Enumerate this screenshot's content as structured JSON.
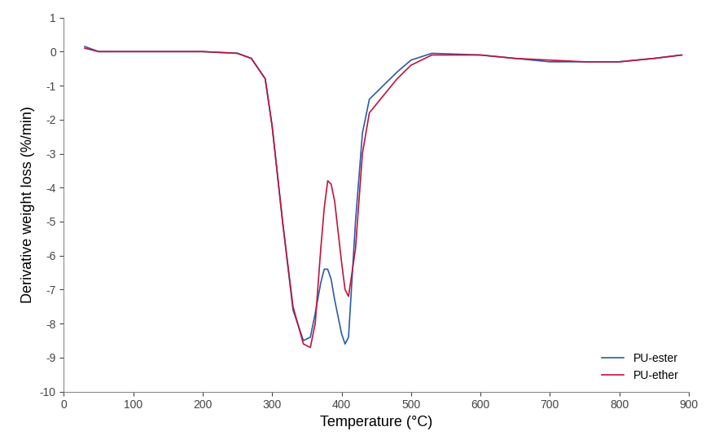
{
  "chart_data": {
    "type": "line",
    "x_label": "Temperature (°C)",
    "y_label": "Derivative weight loss (%/min)",
    "x": [
      30,
      50,
      100,
      150,
      200,
      250,
      270,
      290,
      300,
      315,
      330,
      345,
      355,
      362,
      370,
      375,
      380,
      385,
      390,
      395,
      400,
      405,
      410,
      420,
      430,
      440,
      460,
      480,
      500,
      530,
      600,
      650,
      700,
      750,
      800,
      850,
      890
    ],
    "series": [
      {
        "name": "PU-ester",
        "color": "#2a5caa",
        "values": [
          0.15,
          0.0,
          0.0,
          0.0,
          0.0,
          -0.05,
          -0.2,
          -0.8,
          -2.2,
          -5.0,
          -7.6,
          -8.5,
          -8.4,
          -7.7,
          -6.8,
          -6.4,
          -6.4,
          -6.7,
          -7.3,
          -7.8,
          -8.3,
          -8.6,
          -8.4,
          -5.0,
          -2.4,
          -1.4,
          -1.0,
          -0.6,
          -0.25,
          -0.05,
          -0.1,
          -0.2,
          -0.3,
          -0.3,
          -0.3,
          -0.2,
          -0.1
        ]
      },
      {
        "name": "PU-ether",
        "color": "#c0143c",
        "values": [
          0.1,
          0.0,
          0.0,
          0.0,
          0.0,
          -0.05,
          -0.2,
          -0.8,
          -2.2,
          -5.0,
          -7.5,
          -8.6,
          -8.7,
          -8.0,
          -5.8,
          -4.6,
          -3.8,
          -3.9,
          -4.4,
          -5.3,
          -6.2,
          -7.0,
          -7.2,
          -5.8,
          -3.0,
          -1.8,
          -1.3,
          -0.8,
          -0.4,
          -0.1,
          -0.1,
          -0.2,
          -0.25,
          -0.3,
          -0.3,
          -0.2,
          -0.1
        ]
      }
    ],
    "xlim": [
      0,
      900
    ],
    "xticks": [
      0,
      100,
      200,
      300,
      400,
      500,
      600,
      700,
      800,
      900
    ],
    "ylim": [
      -10,
      1
    ],
    "yticks": [
      -10,
      -9,
      -8,
      -7,
      -6,
      -5,
      -4,
      -3,
      -2,
      -1,
      0,
      1
    ],
    "legend": "lower right",
    "grid": false
  }
}
